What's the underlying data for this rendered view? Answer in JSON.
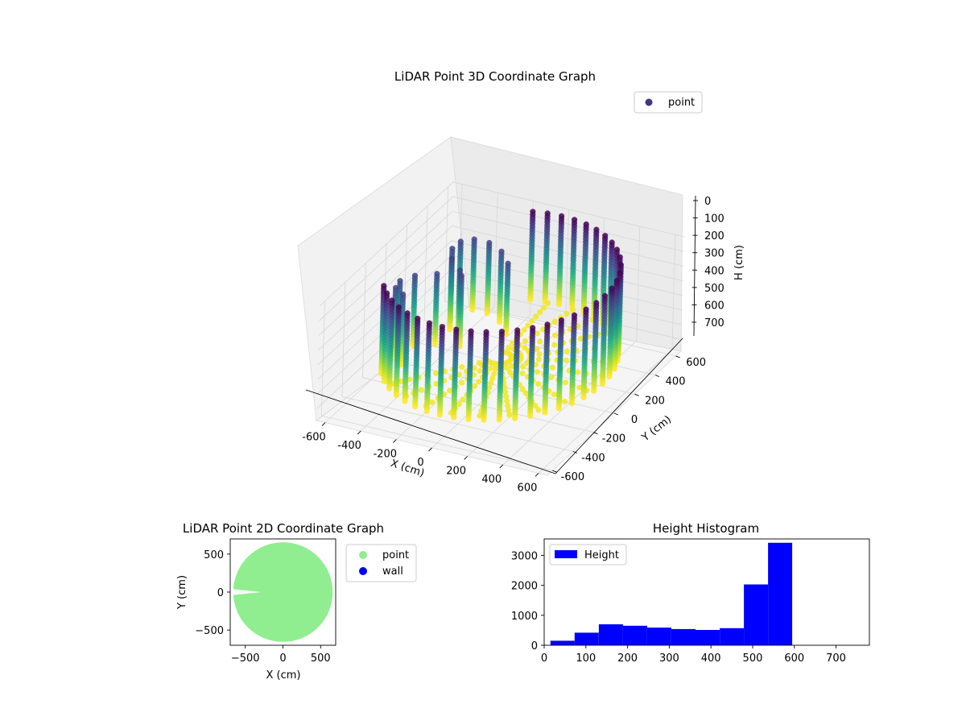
{
  "chart_data": [
    {
      "type": "scatter",
      "projection": "3d",
      "title": "LiDAR Point 3D Coordinate Graph",
      "xlabel": "X (cm)",
      "ylabel": "Y (cm)",
      "zlabel": "H (cm)",
      "xlim": [
        -650,
        650
      ],
      "ylim": [
        -650,
        650
      ],
      "zlim": [
        780,
        0
      ],
      "xticks": [
        -600,
        -400,
        -200,
        0,
        200,
        400,
        600
      ],
      "yticks": [
        -600,
        -400,
        -200,
        0,
        200,
        400,
        600
      ],
      "zticks": [
        0,
        100,
        200,
        300,
        400,
        500,
        600,
        700
      ],
      "z_axis_inverted": true,
      "colormap": "viridis",
      "grid": true,
      "legend": {
        "placement": "top-right",
        "entries": [
          "point"
        ]
      },
      "series": [
        {
          "name": "point",
          "color": "#46327e",
          "shape": "ring wall of vertical LiDAR scan lines with a jagged cut-out opening",
          "ring_radius_cm": 580,
          "opening_angle_range_deg": [
            110,
            215
          ],
          "height_range_cm": [
            0,
            600
          ],
          "angular_step_deg": 7.5,
          "height_step_cm": 20
        }
      ]
    },
    {
      "type": "scatter",
      "title": "LiDAR Point 2D Coordinate Graph",
      "xlabel": "X (cm)",
      "ylabel": "Y (cm)",
      "xlim": [
        -700,
        700
      ],
      "ylim": [
        -700,
        700
      ],
      "xticks": [
        -500,
        0,
        500
      ],
      "yticks": [
        -500,
        0,
        500
      ],
      "grid": false,
      "legend": {
        "placement": "outside-right",
        "entries": [
          "point",
          "wall"
        ]
      },
      "series": [
        {
          "name": "point",
          "color": "#90ee90",
          "shape": "filled disk",
          "radius_cm": 660,
          "notch": {
            "center_y_cm": 0,
            "width_deg": 8,
            "depth_cm": 700
          }
        },
        {
          "name": "wall",
          "color": "#0000ff",
          "values": []
        }
      ]
    },
    {
      "type": "bar",
      "title": "Height Histogram",
      "xlim": [
        0,
        780
      ],
      "ylim": [
        0,
        3550
      ],
      "xticks": [
        0,
        100,
        200,
        300,
        400,
        500,
        600,
        700
      ],
      "yticks": [
        0,
        1000,
        2000,
        3000
      ],
      "grid": false,
      "legend": {
        "placement": "top-left",
        "entries": [
          "Height"
        ]
      },
      "series": [
        {
          "name": "Height",
          "color": "#0000ff",
          "bin_edges": [
            15,
            73,
            131,
            189,
            247,
            305,
            363,
            421,
            479,
            537,
            595
          ],
          "values": [
            150,
            420,
            700,
            650,
            590,
            540,
            510,
            570,
            2030,
            3420
          ]
        }
      ]
    }
  ]
}
